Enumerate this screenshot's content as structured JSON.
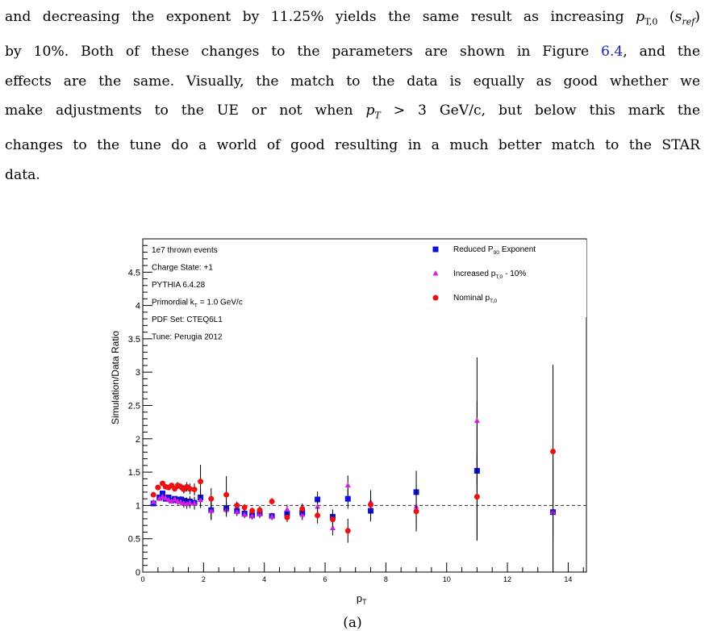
{
  "paragraph": {
    "l1_a": "and decreasing the exponent by 11.25% yields the same result as increasing ",
    "l1_math": "p_{T,0} (s_{ref})",
    "l2_a": "by 10%. Both of these changes to the parameters are shown in Figure ",
    "l2_ref": "6.4",
    "l2_b": ", and the",
    "l3": "effects are the same. Visually, the match to the data is equally as good whether we",
    "l4_a": "make adjustments to the UE or not when ",
    "l4_math": "p_T > 3 GeV/c",
    "l4_b": ", but below this mark the",
    "l5": "changes to the tune do a world of good resulting in a much better match to the STAR",
    "l6": "data."
  },
  "caption": "(a)",
  "chart_data": {
    "type": "scatter",
    "xlabel": "p_T",
    "ylabel": "Simulation/Data Ratio",
    "xlim": [
      0,
      14.6
    ],
    "ylim": [
      0,
      5.0
    ],
    "xticks": [
      0,
      2,
      4,
      6,
      8,
      10,
      12,
      14
    ],
    "yticks": [
      0,
      0.5,
      1,
      1.5,
      2,
      2.5,
      3,
      3.5,
      4,
      4.5
    ],
    "reference_line": 1,
    "info_text": [
      "1e7 thrown events",
      "Charge State: +1",
      "PYTHIA 6.4.28",
      "Primordial k_T = 1.0 GeV/c",
      "PDF Set: CTEQ6L1",
      "Tune: Perugia 2012"
    ],
    "legend_position": "top-right",
    "series": [
      {
        "name": "Reduced P_90 Exponent",
        "color": "#1010e0",
        "marker": "square",
        "points": [
          {
            "x": 0.35,
            "y": 1.03,
            "err": 0.02
          },
          {
            "x": 0.55,
            "y": 1.12,
            "err": 0.03
          },
          {
            "x": 0.65,
            "y": 1.18,
            "err": 0.03
          },
          {
            "x": 0.75,
            "y": 1.1,
            "err": 0.03
          },
          {
            "x": 0.85,
            "y": 1.12,
            "err": 0.03
          },
          {
            "x": 0.95,
            "y": 1.07,
            "err": 0.03
          },
          {
            "x": 1.05,
            "y": 1.1,
            "err": 0.04
          },
          {
            "x": 1.15,
            "y": 1.08,
            "err": 0.05
          },
          {
            "x": 1.25,
            "y": 1.09,
            "err": 0.05
          },
          {
            "x": 1.35,
            "y": 1.07,
            "err": 0.06
          },
          {
            "x": 1.45,
            "y": 1.05,
            "err": 0.07
          },
          {
            "x": 1.55,
            "y": 1.06,
            "err": 0.08
          },
          {
            "x": 1.7,
            "y": 1.04,
            "err": 0.09
          },
          {
            "x": 1.9,
            "y": 1.12,
            "err": 0.12
          },
          {
            "x": 2.25,
            "y": 0.93,
            "err": 0.14
          },
          {
            "x": 2.75,
            "y": 0.96,
            "err": 0.1
          },
          {
            "x": 3.1,
            "y": 0.92,
            "err": 0.06
          },
          {
            "x": 3.35,
            "y": 0.88,
            "err": 0.05
          },
          {
            "x": 3.6,
            "y": 0.85,
            "err": 0.05
          },
          {
            "x": 3.85,
            "y": 0.88,
            "err": 0.06
          },
          {
            "x": 4.25,
            "y": 0.84,
            "err": 0.05
          },
          {
            "x": 4.75,
            "y": 0.88,
            "err": 0.07
          },
          {
            "x": 5.25,
            "y": 0.89,
            "err": 0.08
          },
          {
            "x": 5.75,
            "y": 1.09,
            "err": 0.12
          },
          {
            "x": 6.25,
            "y": 0.83,
            "err": 0.11
          },
          {
            "x": 6.75,
            "y": 1.1,
            "err": 0.15
          },
          {
            "x": 7.5,
            "y": 0.92,
            "err": 0.16
          },
          {
            "x": 9.0,
            "y": 1.2,
            "err": 0.32
          },
          {
            "x": 11.0,
            "y": 1.52,
            "err": 1.05
          },
          {
            "x": 13.5,
            "y": 0.9,
            "err": 0.95
          }
        ]
      },
      {
        "name": "Increased p_T,0 - 10%",
        "color": "#d020e0",
        "marker": "triangle",
        "points": [
          {
            "x": 0.35,
            "y": 1.05,
            "err": 0.02
          },
          {
            "x": 0.55,
            "y": 1.1,
            "err": 0.03
          },
          {
            "x": 0.65,
            "y": 1.13,
            "err": 0.03
          },
          {
            "x": 0.75,
            "y": 1.11,
            "err": 0.03
          },
          {
            "x": 0.85,
            "y": 1.08,
            "err": 0.03
          },
          {
            "x": 0.95,
            "y": 1.06,
            "err": 0.03
          },
          {
            "x": 1.05,
            "y": 1.09,
            "err": 0.04
          },
          {
            "x": 1.15,
            "y": 1.06,
            "err": 0.05
          },
          {
            "x": 1.25,
            "y": 1.05,
            "err": 0.05
          },
          {
            "x": 1.35,
            "y": 1.03,
            "err": 0.06
          },
          {
            "x": 1.45,
            "y": 1.02,
            "err": 0.07
          },
          {
            "x": 1.55,
            "y": 1.04,
            "err": 0.08
          },
          {
            "x": 1.7,
            "y": 1.03,
            "err": 0.09
          },
          {
            "x": 1.9,
            "y": 1.08,
            "err": 0.12
          },
          {
            "x": 2.25,
            "y": 0.92,
            "err": 0.14
          },
          {
            "x": 2.75,
            "y": 0.93,
            "err": 0.1
          },
          {
            "x": 3.1,
            "y": 0.9,
            "err": 0.06
          },
          {
            "x": 3.35,
            "y": 0.86,
            "err": 0.05
          },
          {
            "x": 3.6,
            "y": 0.84,
            "err": 0.05
          },
          {
            "x": 3.85,
            "y": 0.87,
            "err": 0.06
          },
          {
            "x": 4.25,
            "y": 0.83,
            "err": 0.05
          },
          {
            "x": 4.75,
            "y": 0.94,
            "err": 0.07
          },
          {
            "x": 5.25,
            "y": 0.86,
            "err": 0.08
          },
          {
            "x": 5.75,
            "y": 0.98,
            "err": 0.12
          },
          {
            "x": 6.25,
            "y": 0.66,
            "err": 0.11
          },
          {
            "x": 6.75,
            "y": 1.3,
            "err": 0.15
          },
          {
            "x": 7.5,
            "y": 1.05,
            "err": 0.16
          },
          {
            "x": 9.0,
            "y": 0.98,
            "err": 0.32
          },
          {
            "x": 11.0,
            "y": 2.27,
            "err": 0.95
          },
          {
            "x": 13.5,
            "y": 0.9,
            "err": 0.95
          }
        ]
      },
      {
        "name": "Nominal p_T,0",
        "color": "#ee1111",
        "marker": "circle",
        "points": [
          {
            "x": 0.35,
            "y": 1.16,
            "err": 0.02
          },
          {
            "x": 0.5,
            "y": 1.27,
            "err": 0.03
          },
          {
            "x": 0.65,
            "y": 1.33,
            "err": 0.03
          },
          {
            "x": 0.75,
            "y": 1.28,
            "err": 0.03
          },
          {
            "x": 0.85,
            "y": 1.27,
            "err": 0.03
          },
          {
            "x": 0.95,
            "y": 1.3,
            "err": 0.04
          },
          {
            "x": 1.05,
            "y": 1.25,
            "err": 0.04
          },
          {
            "x": 1.15,
            "y": 1.3,
            "err": 0.05
          },
          {
            "x": 1.25,
            "y": 1.28,
            "err": 0.05
          },
          {
            "x": 1.35,
            "y": 1.24,
            "err": 0.06
          },
          {
            "x": 1.45,
            "y": 1.28,
            "err": 0.07
          },
          {
            "x": 1.55,
            "y": 1.25,
            "err": 0.08
          },
          {
            "x": 1.7,
            "y": 1.24,
            "err": 0.09
          },
          {
            "x": 1.9,
            "y": 1.36,
            "err": 0.25
          },
          {
            "x": 2.25,
            "y": 1.1,
            "err": 0.16
          },
          {
            "x": 2.75,
            "y": 1.16,
            "err": 0.28
          },
          {
            "x": 3.1,
            "y": 1.0,
            "err": 0.06
          },
          {
            "x": 3.35,
            "y": 0.97,
            "err": 0.05
          },
          {
            "x": 3.6,
            "y": 0.92,
            "err": 0.05
          },
          {
            "x": 3.85,
            "y": 0.93,
            "err": 0.06
          },
          {
            "x": 4.25,
            "y": 1.06,
            "err": 0.05
          },
          {
            "x": 4.75,
            "y": 0.82,
            "err": 0.07
          },
          {
            "x": 5.25,
            "y": 0.95,
            "err": 0.08
          },
          {
            "x": 5.75,
            "y": 0.85,
            "err": 0.12
          },
          {
            "x": 6.25,
            "y": 0.79,
            "err": 0.11
          },
          {
            "x": 6.75,
            "y": 0.62,
            "err": 0.18
          },
          {
            "x": 7.5,
            "y": 1.01,
            "err": 0.22
          },
          {
            "x": 9.0,
            "y": 0.91,
            "err": 0.3
          },
          {
            "x": 11.0,
            "y": 1.13,
            "err": 0.65
          },
          {
            "x": 13.5,
            "y": 1.81,
            "err": 1.3
          }
        ]
      }
    ]
  }
}
